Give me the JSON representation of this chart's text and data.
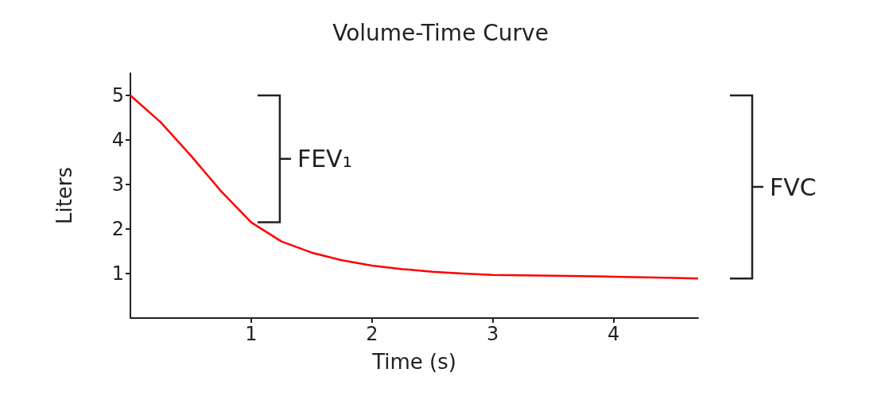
{
  "chart_data": {
    "type": "line",
    "title": "Volume-Time Curve",
    "xlabel": "Time (s)",
    "ylabel": "Liters",
    "x": [
      0,
      0.25,
      0.5,
      0.75,
      1,
      1.25,
      1.5,
      1.75,
      2,
      2.25,
      2.5,
      2.75,
      3,
      3.5,
      4,
      4.5,
      4.7
    ],
    "series": [
      {
        "color": "#ff0000",
        "values": [
          5,
          4.4,
          3.65,
          2.85,
          2.15,
          1.72,
          1.47,
          1.3,
          1.18,
          1.1,
          1.04,
          1.0,
          0.97,
          0.95,
          0.93,
          0.9,
          0.89
        ]
      }
    ],
    "xlim": [
      0,
      4.7
    ],
    "xticks": [
      1,
      2,
      3,
      4
    ],
    "ylim": [
      0,
      5.5
    ],
    "yticks": [
      1,
      2,
      3,
      4,
      5
    ],
    "grid": false,
    "marker": "none",
    "line_style": "solid",
    "annotations": [
      "FEV₁",
      "FVC"
    ]
  }
}
